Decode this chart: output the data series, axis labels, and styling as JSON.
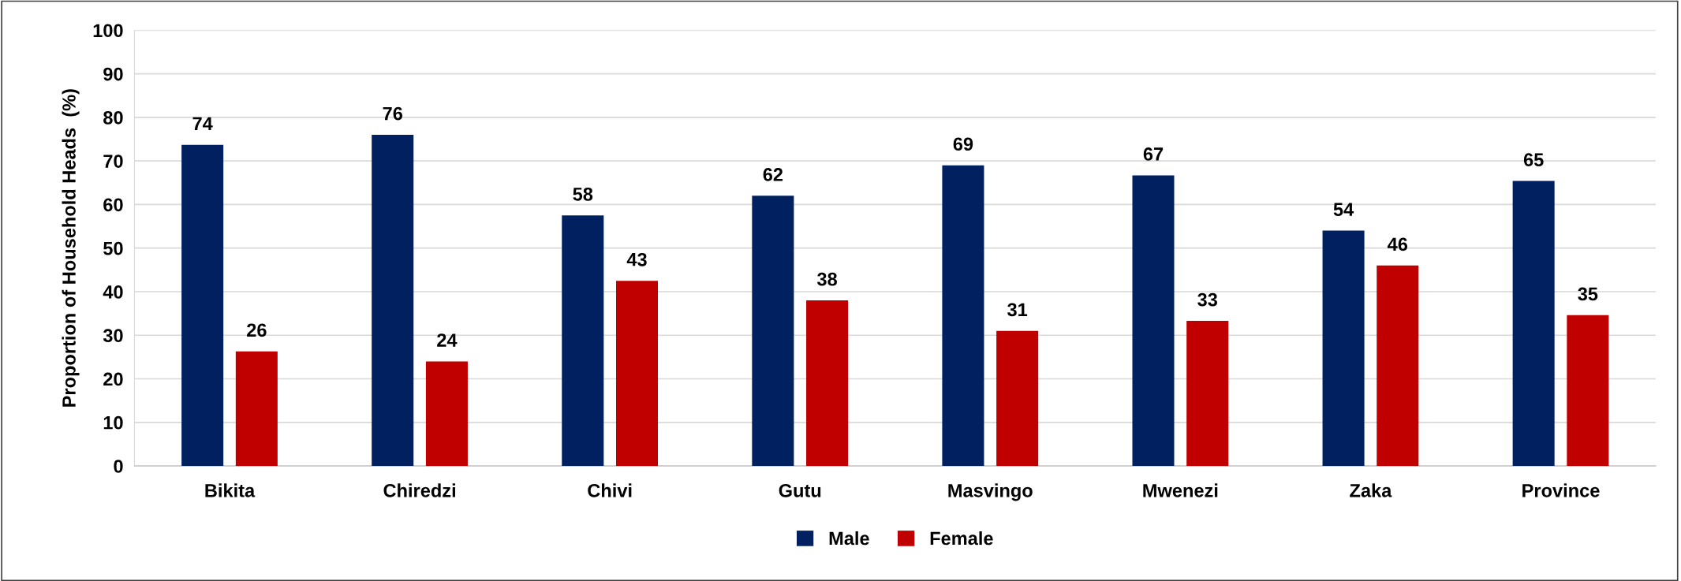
{
  "chart_data": {
    "type": "bar",
    "ylabel": "Proportion of Household Heads  (%)",
    "categories": [
      "Bikita",
      "Chiredzi",
      "Chivi",
      "Gutu",
      "Masvingo",
      "Mwenezi",
      "Zaka",
      "Province"
    ],
    "series": [
      {
        "name": "Male",
        "color": "#002060",
        "values": [
          73.7,
          76,
          57.5,
          62,
          69,
          66.7,
          54,
          65.4
        ],
        "value_labels": [
          "74",
          "76",
          "58",
          "62",
          "69",
          "67",
          "54",
          "65"
        ]
      },
      {
        "name": "Female",
        "color": "#c00000",
        "values": [
          26.3,
          24,
          42.5,
          38,
          31,
          33.3,
          46,
          34.6
        ],
        "value_labels": [
          "26",
          "24",
          "43",
          "38",
          "31",
          "33",
          "46",
          "35"
        ]
      }
    ],
    "ylim": [
      0,
      100
    ],
    "yticks": [
      0,
      10,
      20,
      30,
      40,
      50,
      60,
      70,
      80,
      90,
      100
    ],
    "grid": "y",
    "legend": "bottom"
  }
}
